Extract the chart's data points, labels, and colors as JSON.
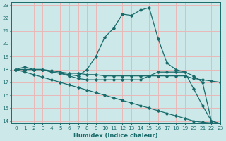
{
  "xlabel": "Humidex (Indice chaleur)",
  "bg_color": "#cce8e8",
  "grid_color": "#e8b8b8",
  "line_color": "#1a6b6b",
  "xlim": [
    -0.5,
    23
  ],
  "ylim": [
    13.8,
    23.2
  ],
  "yticks": [
    14,
    15,
    16,
    17,
    18,
    19,
    20,
    21,
    22,
    23
  ],
  "xticks": [
    0,
    1,
    2,
    3,
    4,
    5,
    6,
    7,
    8,
    9,
    10,
    11,
    12,
    13,
    14,
    15,
    16,
    17,
    18,
    19,
    20,
    21,
    22,
    23
  ],
  "series": [
    {
      "x": [
        0,
        1,
        2,
        3,
        4,
        5,
        6,
        7,
        8,
        9,
        10,
        11,
        12,
        13,
        14,
        15,
        16,
        17,
        18,
        19,
        20,
        21,
        22,
        23
      ],
      "y": [
        18,
        18.2,
        18,
        18,
        17.8,
        17.7,
        17.6,
        17.5,
        18,
        19,
        20.5,
        21.2,
        22.3,
        22.2,
        22.6,
        22.8,
        20.4,
        18.5,
        18,
        17.8,
        17.5,
        17.0,
        14.0,
        13.8
      ]
    },
    {
      "x": [
        0,
        1,
        2,
        3,
        4,
        5,
        6,
        7,
        8,
        9,
        10,
        11,
        12,
        13,
        14,
        15,
        16,
        17,
        18,
        19,
        20,
        21,
        22,
        23
      ],
      "y": [
        18,
        18,
        18,
        18,
        17.9,
        17.8,
        17.7,
        17.7,
        17.6,
        17.6,
        17.5,
        17.5,
        17.5,
        17.5,
        17.5,
        17.5,
        17.5,
        17.5,
        17.5,
        17.5,
        17.3,
        17.2,
        17.1,
        17.0
      ]
    },
    {
      "x": [
        0,
        1,
        2,
        3,
        4,
        5,
        6,
        7,
        8,
        9,
        10,
        11,
        12,
        13,
        14,
        15,
        16,
        17,
        18,
        19,
        20,
        21,
        22,
        23
      ],
      "y": [
        18,
        17.8,
        17.6,
        17.4,
        17.2,
        17.0,
        16.8,
        16.6,
        16.4,
        16.2,
        16.0,
        15.8,
        15.6,
        15.4,
        15.2,
        15.0,
        14.8,
        14.6,
        14.4,
        14.2,
        14.0,
        13.9,
        13.85,
        13.8
      ]
    },
    {
      "x": [
        0,
        1,
        2,
        3,
        4,
        5,
        6,
        7,
        8,
        9,
        10,
        11,
        12,
        13,
        14,
        15,
        16,
        17,
        18,
        19,
        20,
        21,
        22,
        23
      ],
      "y": [
        18,
        18,
        18,
        18,
        17.8,
        17.7,
        17.5,
        17.3,
        17.2,
        17.2,
        17.2,
        17.2,
        17.2,
        17.2,
        17.2,
        17.5,
        17.8,
        17.8,
        17.8,
        17.8,
        16.5,
        15.2,
        14.0,
        13.8
      ]
    }
  ]
}
